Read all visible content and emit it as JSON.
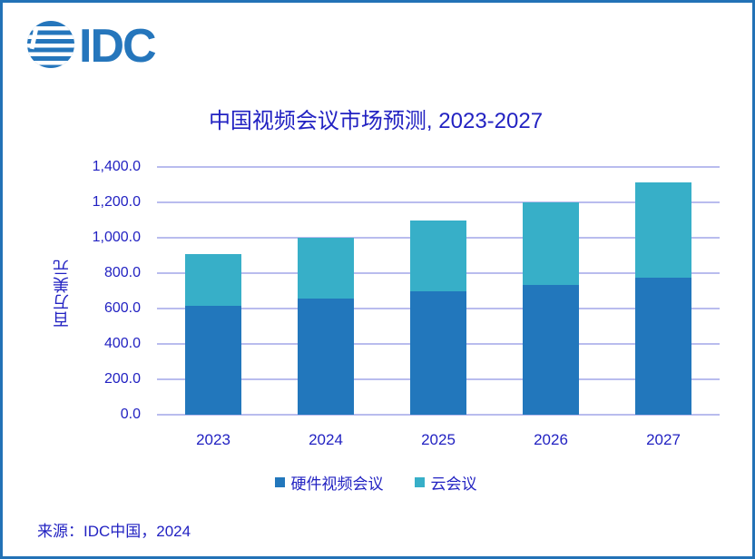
{
  "brand": {
    "logo_text": "IDC"
  },
  "chart_data": {
    "type": "bar",
    "stacked": true,
    "title": "中国视频会议市场预测, 2023-2027",
    "ylabel": "百万美元",
    "xlabel": "",
    "categories": [
      "2023",
      "2024",
      "2025",
      "2026",
      "2027"
    ],
    "series": [
      {
        "name": "硬件视频会议",
        "color": "#2277BC",
        "values": [
          615,
          655,
          700,
          735,
          775
        ]
      },
      {
        "name": "云会议",
        "color": "#37AFC8",
        "values": [
          295,
          345,
          395,
          465,
          540
        ]
      }
    ],
    "totals": [
      910,
      1000,
      1095,
      1200,
      1315
    ],
    "ylim": [
      0,
      1400
    ],
    "ytick_step": 200,
    "ytick_labels": [
      "0.0",
      "200.0",
      "400.0",
      "600.0",
      "800.0",
      "1,000.0",
      "1,200.0",
      "1,400.0"
    ],
    "grid": true,
    "legend_position": "bottom"
  },
  "source": {
    "label": "来源：IDC中国，2024"
  },
  "colors": {
    "frame": "#2272B6",
    "logo_blue": "#2576BC",
    "text": "#2222C2",
    "gridline": "#B9BCEE",
    "hardware_bar": "#2277BC",
    "cloud_bar": "#37AFC8"
  }
}
